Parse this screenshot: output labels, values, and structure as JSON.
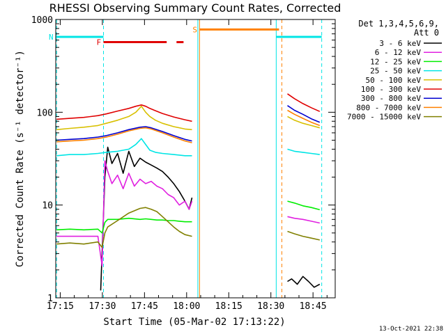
{
  "chart_data": {
    "type": "line",
    "title": "RHESSI Observing Summary Count Rates, Corrected",
    "xlabel": "Start Time (05-Mar-02 17:13:22)",
    "ylabel": "Corrected Count Rate (s⁻¹ detector⁻¹)",
    "y_scale": "log",
    "ylim": [
      1,
      1000
    ],
    "x_unit": "minutes after 17:13:22",
    "xlim": [
      0,
      99.5
    ],
    "x_ticks": [
      {
        "label": "17:15",
        "x": 1.6
      },
      {
        "label": "17:30",
        "x": 16.6
      },
      {
        "label": "17:45",
        "x": 31.6
      },
      {
        "label": "18:00",
        "x": 46.6
      },
      {
        "label": "18:15",
        "x": 61.6
      },
      {
        "label": "18:30",
        "x": 76.6
      },
      {
        "label": "18:45",
        "x": 91.6
      }
    ],
    "y_ticks": [
      {
        "label": "1",
        "y": 1
      },
      {
        "label": "10",
        "y": 10
      },
      {
        "label": "100",
        "y": 100
      },
      {
        "label": "1000",
        "y": 1000
      }
    ],
    "legend_header": [
      "Det 1,3,4,5,6,9,",
      "Att 0"
    ],
    "legend_position": "right",
    "series": [
      {
        "name": "3 - 6 keV",
        "color": "#000000",
        "segments": [
          {
            "x": [
              16.0,
              17.5,
              18.5,
              20.0,
              22.0,
              24.0,
              26.0,
              28.0,
              30.0,
              32.0,
              34.0,
              36.0,
              38.0,
              40.0,
              42.0,
              44.0,
              46.0,
              47.5,
              48.5
            ],
            "y": [
              1.2,
              20,
              42,
              28,
              36,
              22,
              38,
              26,
              32,
              29,
              27,
              25,
              23,
              20,
              17,
              14,
              11,
              9,
              12
            ]
          },
          {
            "x": [
              82.5,
              84.0,
              86.0,
              88.0,
              90.0,
              92.0,
              94.0
            ],
            "y": [
              1.5,
              1.6,
              1.4,
              1.7,
              1.5,
              1.3,
              1.4
            ]
          }
        ]
      },
      {
        "name": "6 - 12 keV",
        "color": "#e020e0",
        "segments": [
          {
            "x": [
              0.3,
              5.0,
              10.0,
              15.0,
              16.5,
              17.5,
              18.5,
              20.0,
              22.0,
              24.0,
              26.0,
              28.0,
              30.0,
              32.0,
              34.0,
              36.0,
              38.0,
              40.0,
              42.0,
              44.0,
              46.0,
              47.5,
              48.5
            ],
            "y": [
              4.6,
              4.6,
              4.6,
              4.6,
              2.2,
              30,
              23,
              17,
              21,
              15,
              22,
              16,
              19,
              17,
              18,
              16,
              15,
              13,
              12,
              10,
              11,
              9,
              11
            ]
          },
          {
            "x": [
              82.5,
              85.0,
              88.0,
              91.0,
              94.0
            ],
            "y": [
              7.5,
              7.2,
              7.0,
              6.7,
              6.4
            ]
          }
        ]
      },
      {
        "name": "12 - 25 keV",
        "color": "#00ee00",
        "segments": [
          {
            "x": [
              0.3,
              5.0,
              10.0,
              15.0,
              16.5,
              17.5,
              18.5,
              22.0,
              26.0,
              30.0,
              32.0,
              34.0,
              36.0,
              38.0,
              40.0,
              42.0,
              44.0,
              46.0,
              48.5
            ],
            "y": [
              5.4,
              5.5,
              5.4,
              5.5,
              5.0,
              6.5,
              7.0,
              7.0,
              7.2,
              7.0,
              7.1,
              7.0,
              6.9,
              6.9,
              6.8,
              6.8,
              6.7,
              6.6,
              6.6
            ]
          },
          {
            "x": [
              82.5,
              85.0,
              88.0,
              91.0,
              94.0
            ],
            "y": [
              11.0,
              10.5,
              9.8,
              9.4,
              8.9
            ]
          }
        ]
      },
      {
        "name": "25 - 50 keV",
        "color": "#00e5e5",
        "segments": [
          {
            "x": [
              0.3,
              5.0,
              10.0,
              15.0,
              18.0,
              22.0,
              26.0,
              28.5,
              30.5,
              32.0,
              33.5,
              35.5,
              38.0,
              42.0,
              46.0,
              48.5
            ],
            "y": [
              34,
              35,
              35,
              36,
              37,
              38,
              40,
              45,
              52,
              45,
              39,
              37,
              36,
              35,
              34,
              34
            ]
          },
          {
            "x": [
              82.5,
              85.0,
              88.0,
              91.0,
              94.0
            ],
            "y": [
              40,
              38,
              37,
              36,
              35
            ]
          }
        ]
      },
      {
        "name": "50 - 100 keV",
        "color": "#d8c000",
        "segments": [
          {
            "x": [
              0.3,
              5.0,
              10.0,
              15.0,
              18.0,
              22.0,
              26.0,
              28.5,
              30.5,
              32.0,
              33.5,
              35.5,
              38.0,
              42.0,
              46.0,
              48.5
            ],
            "y": [
              65,
              67,
              69,
              72,
              76,
              82,
              90,
              100,
              116,
              100,
              90,
              82,
              76,
              70,
              66,
              65
            ]
          },
          {
            "x": [
              82.5,
              85.0,
              88.0,
              91.0,
              94.0
            ],
            "y": [
              90,
              82,
              76,
              72,
              68
            ]
          }
        ]
      },
      {
        "name": "100 - 300 keV",
        "color": "#e00000",
        "segments": [
          {
            "x": [
              0.3,
              5.0,
              10.0,
              15.0,
              18.0,
              22.0,
              26.0,
              28.5,
              30.5,
              32.0,
              33.5,
              35.5,
              38.0,
              42.0,
              46.0,
              48.5
            ],
            "y": [
              84,
              86,
              88,
              92,
              96,
              103,
              110,
              116,
              120,
              116,
              110,
              104,
              97,
              89,
              83,
              80
            ]
          },
          {
            "x": [
              82.5,
              85.0,
              88.0,
              91.0,
              94.0
            ],
            "y": [
              158,
              140,
              124,
              112,
              102
            ]
          }
        ]
      },
      {
        "name": "300 - 800 keV",
        "color": "#0000d0",
        "segments": [
          {
            "x": [
              0.3,
              5.0,
              10.0,
              15.0,
              18.0,
              22.0,
              26.0,
              30.0,
              32.0,
              34.0,
              38.0,
              42.0,
              46.0,
              48.5
            ],
            "y": [
              50,
              51,
              52,
              54,
              56,
              60,
              65,
              69,
              70,
              68,
              62,
              56,
              51,
              49
            ]
          },
          {
            "x": [
              82.5,
              85.0,
              88.0,
              91.0,
              94.0
            ],
            "y": [
              118,
              105,
              95,
              85,
              78
            ]
          }
        ]
      },
      {
        "name": "800 - 7000 keV",
        "color": "#ff8000",
        "segments": [
          {
            "x": [
              0.3,
              5.0,
              10.0,
              15.0,
              18.0,
              22.0,
              26.0,
              30.0,
              32.0,
              34.0,
              38.0,
              42.0,
              46.0,
              48.5
            ],
            "y": [
              48,
              49,
              50,
              52,
              54,
              58,
              63,
              67,
              68,
              66,
              60,
              54,
              49,
              47
            ]
          },
          {
            "x": [
              82.5,
              85.0,
              88.0,
              91.0,
              94.0
            ],
            "y": [
              105,
              95,
              86,
              78,
              72
            ]
          }
        ]
      },
      {
        "name": "7000 - 15000 keV",
        "color": "#808000",
        "segments": [
          {
            "x": [
              0.3,
              5.0,
              10.0,
              15.0,
              16.5,
              17.5,
              18.5,
              22.0,
              26.0,
              30.0,
              32.0,
              34.0,
              36.0,
              38.0,
              40.0,
              42.0,
              44.0,
              46.0,
              48.5
            ],
            "y": [
              3.8,
              3.9,
              3.8,
              4.0,
              3.5,
              5.0,
              5.8,
              6.8,
              8.2,
              9.2,
              9.4,
              9.0,
              8.5,
              7.5,
              6.6,
              5.8,
              5.2,
              4.8,
              4.6
            ]
          },
          {
            "x": [
              82.5,
              85.0,
              88.0,
              91.0,
              94.0
            ],
            "y": [
              5.2,
              4.9,
              4.6,
              4.4,
              4.2
            ]
          }
        ]
      }
    ],
    "annotations": [
      {
        "label": "N",
        "kind": "cyan-line",
        "color": "#00e5e5",
        "segments": [
          [
            0,
            17.0
          ],
          [
            78.5,
            94.7
          ]
        ],
        "y": 650
      },
      {
        "label": "F",
        "kind": "red-line",
        "color": "#e00000",
        "segments": [
          [
            17.0,
            39.5
          ],
          [
            43.0,
            45.5
          ]
        ],
        "y": 570
      },
      {
        "label": "S",
        "kind": "orange-line",
        "color": "#ff8000",
        "segments": [
          [
            51.2,
            79.5
          ]
        ],
        "y": 780
      }
    ],
    "vertical_markers": [
      {
        "x": 0.3,
        "color": "#00e5e5",
        "style": "dashed"
      },
      {
        "x": 17.0,
        "color": "#00e5e5",
        "style": "dashed"
      },
      {
        "x": 94.7,
        "color": "#00e5e5",
        "style": "dashed"
      },
      {
        "x": 50.6,
        "color": "#00e5e5",
        "style": "solid"
      },
      {
        "x": 78.5,
        "color": "#00e5e5",
        "style": "solid"
      },
      {
        "x": 51.2,
        "color": "#ff8000",
        "style": "solid"
      },
      {
        "x": 80.5,
        "color": "#ff8000",
        "style": "dashed"
      }
    ]
  },
  "footer": {
    "date_stamp": "13-Oct-2021 22:38"
  }
}
